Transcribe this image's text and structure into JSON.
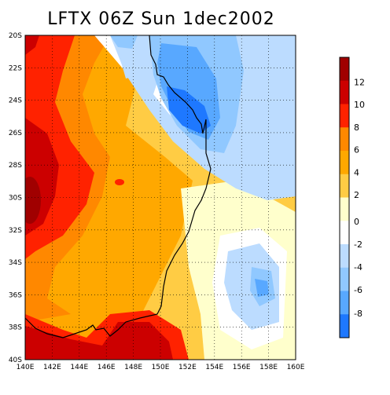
{
  "title": "LFTX 06Z Sun 1dec2002",
  "map": {
    "lat_labels": [
      "20S",
      "22S",
      "24S",
      "26S",
      "28S",
      "30S",
      "32S",
      "34S",
      "36S",
      "38S",
      "40S"
    ],
    "lon_labels": [
      "140E",
      "142E",
      "144E",
      "146E",
      "148E",
      "150E",
      "152E",
      "154E",
      "156E",
      "158E",
      "160E"
    ],
    "lat_range": [
      -40,
      -20
    ],
    "lon_range": [
      140,
      160
    ],
    "grid": "dotted"
  },
  "colorbar": {
    "labels": [
      "12",
      "10",
      "8",
      "6",
      "4",
      "2",
      "0",
      "-2",
      "-4",
      "-6",
      "-8"
    ],
    "bins": [
      {
        "range": "12 to 14",
        "color": "#a00000"
      },
      {
        "range": "10 to 12",
        "color": "#cc0000"
      },
      {
        "range": "8 to 10",
        "color": "#ff2200"
      },
      {
        "range": "6 to 8",
        "color": "#ff8800"
      },
      {
        "range": "4 to 6",
        "color": "#ffa800"
      },
      {
        "range": "2 to 4",
        "color": "#ffcc44"
      },
      {
        "range": "0 to 2",
        "color": "#ffffcc"
      },
      {
        "range": "-2 to 0",
        "color": "#ffffff"
      },
      {
        "range": "-4 to -2",
        "color": "#bcdcff"
      },
      {
        "range": "-6 to -4",
        "color": "#90c8ff"
      },
      {
        "range": "-8 to -6",
        "color": "#58a8ff"
      },
      {
        "range": "-10 to -8",
        "color": "#1e78ff"
      }
    ]
  }
}
